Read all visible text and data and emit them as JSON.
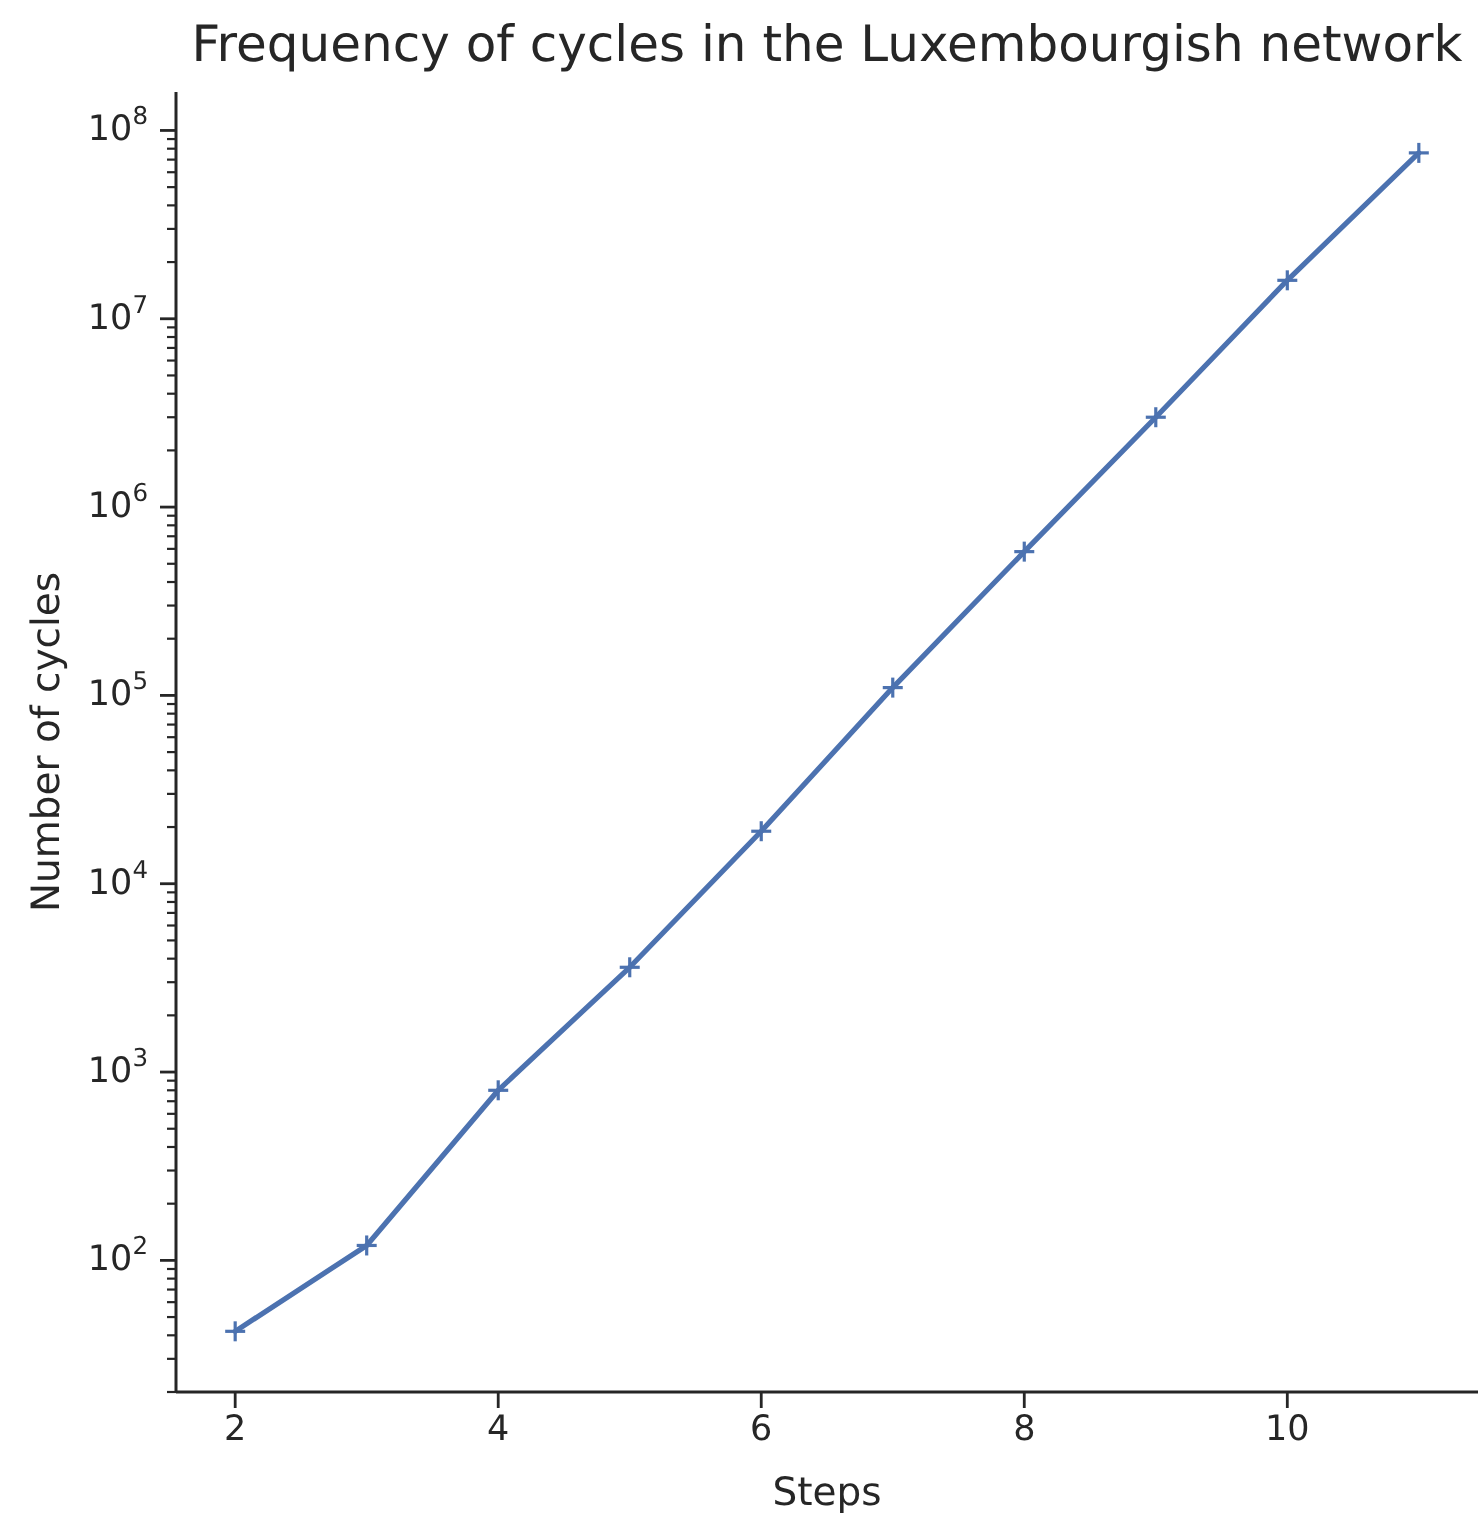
{
  "chart_data": {
    "type": "line",
    "title": "Frequency of cycles in the Luxembourgish network",
    "xlabel": "Steps",
    "ylabel": "Number of cycles",
    "x": [
      2,
      3,
      4,
      5,
      6,
      7,
      8,
      9,
      10,
      11
    ],
    "series": [
      {
        "color": "#4c72b0",
        "values": [
          42,
          120,
          800,
          3600,
          19000,
          110000,
          580000,
          3000000,
          16000000,
          76000000
        ]
      }
    ],
    "xlim": [
      1.55,
      11.45
    ],
    "ylim": [
      20,
      160000000
    ],
    "xticks": [
      2,
      4,
      6,
      8,
      10
    ],
    "yticks": [
      {
        "value": 20,
        "label": null
      },
      {
        "value": 30,
        "label": null
      },
      {
        "value": 40,
        "label": null
      },
      {
        "value": 50,
        "label": null
      },
      {
        "value": 60,
        "label": null
      },
      {
        "value": 70,
        "label": null
      },
      {
        "value": 80,
        "label": null
      },
      {
        "value": 90,
        "label": null
      },
      {
        "value": 100,
        "label": "10$^{2}$"
      },
      {
        "value": 200,
        "label": null
      },
      {
        "value": 300,
        "label": null
      },
      {
        "value": 400,
        "label": null
      },
      {
        "value": 500,
        "label": null
      },
      {
        "value": 600,
        "label": null
      },
      {
        "value": 700,
        "label": null
      },
      {
        "value": 800,
        "label": null
      },
      {
        "value": 900,
        "label": null
      },
      {
        "value": 1000,
        "label": "10$^{3}$"
      },
      {
        "value": 2000,
        "label": null
      },
      {
        "value": 3000,
        "label": null
      },
      {
        "value": 4000,
        "label": null
      },
      {
        "value": 5000,
        "label": null
      },
      {
        "value": 6000,
        "label": null
      },
      {
        "value": 7000,
        "label": null
      },
      {
        "value": 8000,
        "label": null
      },
      {
        "value": 9000,
        "label": null
      },
      {
        "value": 10000,
        "label": "10$^{4}$"
      },
      {
        "value": 20000,
        "label": null
      },
      {
        "value": 30000,
        "label": null
      },
      {
        "value": 40000,
        "label": null
      },
      {
        "value": 50000,
        "label": null
      },
      {
        "value": 60000,
        "label": null
      },
      {
        "value": 70000,
        "label": null
      },
      {
        "value": 80000,
        "label": null
      },
      {
        "value": 90000,
        "label": null
      },
      {
        "value": 100000,
        "label": "10$^{5}$"
      },
      {
        "value": 200000,
        "label": null
      },
      {
        "value": 300000,
        "label": null
      },
      {
        "value": 400000,
        "label": null
      },
      {
        "value": 500000,
        "label": null
      },
      {
        "value": 600000,
        "label": null
      },
      {
        "value": 700000,
        "label": null
      },
      {
        "value": 800000,
        "label": null
      },
      {
        "value": 900000,
        "label": null
      },
      {
        "value": 1000000,
        "label": "10$^{6}$"
      },
      {
        "value": 2000000,
        "label": null
      },
      {
        "value": 3000000,
        "label": null
      },
      {
        "value": 4000000,
        "label": null
      },
      {
        "value": 5000000,
        "label": null
      },
      {
        "value": 6000000,
        "label": null
      },
      {
        "value": 7000000,
        "label": null
      },
      {
        "value": 8000000,
        "label": null
      },
      {
        "value": 9000000,
        "label": null
      },
      {
        "value": 10000000,
        "label": "10$^{7}$"
      },
      {
        "value": 20000000,
        "label": null
      },
      {
        "value": 30000000,
        "label": null
      },
      {
        "value": 40000000,
        "label": null
      },
      {
        "value": 50000000,
        "label": null
      },
      {
        "value": 60000000,
        "label": null
      },
      {
        "value": 70000000,
        "label": null
      },
      {
        "value": 80000000,
        "label": null
      },
      {
        "value": 90000000,
        "label": null
      },
      {
        "value": 100000000,
        "label": "10$^{8}$"
      }
    ],
    "log": "y",
    "marker": "cross",
    "line_style": "solid"
  }
}
